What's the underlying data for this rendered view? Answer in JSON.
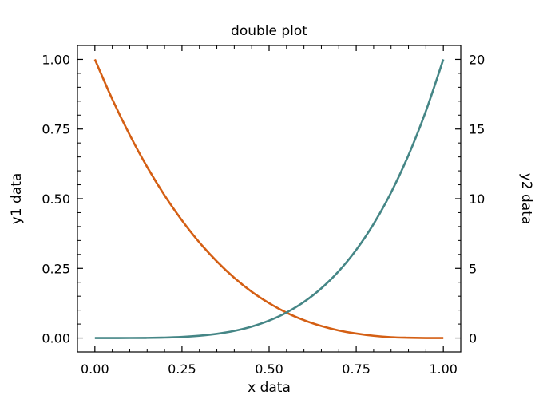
{
  "chart_data": {
    "type": "line",
    "title": "double plot",
    "xlabel": "x data",
    "ylabel": "y1 data",
    "y2label": "y2 data",
    "xlim": [
      -0.05,
      1.05
    ],
    "ylim": [
      -0.05,
      1.05
    ],
    "y2lim": [
      -1,
      21
    ],
    "xticks": [
      0,
      0.25,
      0.5,
      0.75,
      1
    ],
    "xtick_labels": [
      "0.00",
      "0.25",
      "0.50",
      "0.75",
      "1.00"
    ],
    "yticks": [
      0,
      0.25,
      0.5,
      0.75,
      1
    ],
    "ytick_labels": [
      "0.00",
      "0.25",
      "0.50",
      "0.75",
      "1.00"
    ],
    "y2ticks": [
      0,
      5,
      10,
      15,
      20
    ],
    "y2tick_labels": [
      "0",
      "5",
      "10",
      "15",
      "20"
    ],
    "grid": false,
    "x": [
      0,
      0.05,
      0.1,
      0.15,
      0.2,
      0.25,
      0.3,
      0.35,
      0.4,
      0.45,
      0.5,
      0.55,
      0.6,
      0.65,
      0.7,
      0.75,
      0.8,
      0.85,
      0.9,
      0.95,
      1
    ],
    "series": [
      {
        "axis": "left",
        "color": "#d45f14",
        "values": [
          1.0,
          0.857,
          0.729,
          0.614,
          0.512,
          0.422,
          0.343,
          0.275,
          0.216,
          0.166,
          0.125,
          0.091,
          0.064,
          0.043,
          0.027,
          0.016,
          0.008,
          0.003,
          0.001,
          0.0,
          0.0
        ]
      },
      {
        "axis": "right",
        "color": "#458686",
        "values": [
          0,
          0.0,
          0.002,
          0.01,
          0.032,
          0.078,
          0.162,
          0.3,
          0.512,
          0.82,
          1.25,
          1.83,
          2.592,
          3.57,
          4.802,
          6.328,
          8.192,
          10.44,
          13.122,
          16.29,
          20.0
        ]
      }
    ]
  }
}
